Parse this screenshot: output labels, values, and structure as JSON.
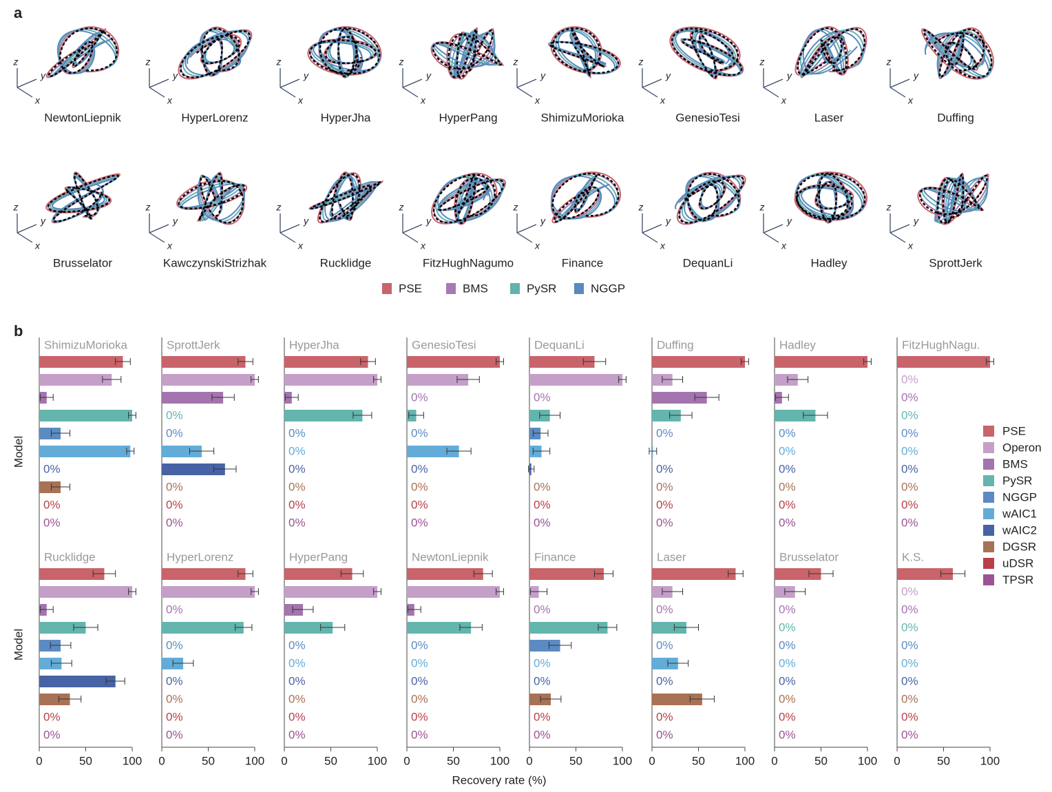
{
  "panel_a": {
    "label": "a",
    "axis_letters": [
      "x",
      "y",
      "z"
    ],
    "systems": [
      "NewtonLiepnik",
      "HyperLorenz",
      "HyperJha",
      "HyperPang",
      "ShimizuMorioka",
      "GenesioTesi",
      "Laser",
      "Duffing",
      "Brusselator",
      "KawczynskiStrizhak",
      "Rucklidge",
      "FitzHughNagumo",
      "Finance",
      "DequanLi",
      "Hadley",
      "SprottJerk"
    ],
    "legend": [
      {
        "name": "PSE",
        "color": "#c8646a"
      },
      {
        "name": "BMS",
        "color": "#a57ab2"
      },
      {
        "name": "PySR",
        "color": "#62b3ad"
      },
      {
        "name": "NGGP",
        "color": "#5a88bf"
      }
    ]
  },
  "figure_b": {
    "label": "b",
    "ylabel": "Model",
    "xlabel": "Recovery rate (%)",
    "xlim": [
      0,
      100
    ],
    "xticks": [
      0,
      50,
      100
    ],
    "models": [
      "PSE",
      "Operon",
      "BMS",
      "PySR",
      "NGGP",
      "wAIC1",
      "wAIC2",
      "DGSR",
      "uDSR",
      "TPSR"
    ],
    "colors": [
      "#c8646a",
      "#c49fc8",
      "#a374ae",
      "#63b5ae",
      "#5b8bc2",
      "#64acd8",
      "#4863a4",
      "#a87254",
      "#b84049",
      "#9a5393"
    ]
  },
  "chart_data": [
    {
      "type": "bar",
      "title": "ShimizuMorioka",
      "values": [
        90,
        78,
        8,
        100,
        23,
        98,
        0,
        23,
        0,
        0
      ],
      "errors": [
        8,
        10,
        7,
        4,
        10,
        4,
        0,
        10,
        0,
        0
      ],
      "value_labels": [
        null,
        null,
        null,
        null,
        null,
        null,
        "0%",
        null,
        "0%",
        "0%"
      ]
    },
    {
      "type": "bar",
      "title": "SprottJerk",
      "values": [
        90,
        100,
        66,
        0,
        0,
        43,
        68,
        0,
        0,
        0
      ],
      "errors": [
        8,
        4,
        12,
        0,
        0,
        13,
        12,
        0,
        0,
        0
      ],
      "value_labels": [
        null,
        null,
        null,
        "0%",
        "0%",
        null,
        null,
        "0%",
        "0%",
        "0%"
      ]
    },
    {
      "type": "bar",
      "title": "HyperJha",
      "values": [
        90,
        100,
        8,
        84,
        0,
        0,
        0,
        0,
        0,
        0
      ],
      "errors": [
        8,
        4,
        7,
        10,
        0,
        0,
        0,
        0,
        0,
        0
      ],
      "value_labels": [
        null,
        null,
        null,
        null,
        "0%",
        "0%",
        "0%",
        "0%",
        "0%",
        "0%"
      ]
    },
    {
      "type": "bar",
      "title": "GenesioTesi",
      "values": [
        100,
        66,
        0,
        10,
        0,
        56,
        0,
        0,
        0,
        0
      ],
      "errors": [
        4,
        12,
        0,
        8,
        0,
        13,
        0,
        0,
        0,
        0
      ],
      "value_labels": [
        null,
        null,
        "0%",
        null,
        "0%",
        null,
        "0%",
        "0%",
        "0%",
        "0%"
      ]
    },
    {
      "type": "bar",
      "title": "DequanLi",
      "values": [
        70,
        100,
        0,
        22,
        12,
        13,
        2,
        0,
        0,
        0
      ],
      "errors": [
        12,
        4,
        0,
        11,
        8,
        9,
        3,
        0,
        0,
        0
      ],
      "value_labels": [
        null,
        null,
        "0%",
        null,
        null,
        null,
        null,
        "0%",
        "0%",
        "0%"
      ]
    },
    {
      "type": "bar",
      "title": "Duffing",
      "values": [
        100,
        22,
        59,
        31,
        0,
        1,
        0,
        0,
        0,
        0
      ],
      "errors": [
        4,
        11,
        13,
        12,
        0,
        4,
        0,
        0,
        0,
        0
      ],
      "value_labels": [
        null,
        null,
        null,
        null,
        "0%",
        null,
        "0%",
        "0%",
        "0%",
        "0%"
      ]
    },
    {
      "type": "bar",
      "title": "Hadley",
      "values": [
        100,
        25,
        8,
        44,
        0,
        0,
        0,
        0,
        0,
        0
      ],
      "errors": [
        4,
        11,
        7,
        13,
        0,
        0,
        0,
        0,
        0,
        0
      ],
      "value_labels": [
        null,
        null,
        null,
        null,
        "0%",
        "0%",
        "0%",
        "0%",
        "0%",
        "0%"
      ]
    },
    {
      "type": "bar",
      "title": "FitzHughNagu.",
      "values": [
        100,
        0,
        0,
        0,
        0,
        0,
        0,
        0,
        0,
        0
      ],
      "errors": [
        4,
        0,
        0,
        0,
        0,
        0,
        0,
        0,
        0,
        0
      ],
      "value_labels": [
        null,
        "0%",
        "0%",
        "0%",
        "0%",
        "0%",
        "0%",
        "0%",
        "0%",
        "0%"
      ]
    },
    {
      "type": "bar",
      "title": "Rucklidge",
      "values": [
        70,
        100,
        8,
        50,
        23,
        24,
        82,
        33,
        0,
        0
      ],
      "errors": [
        12,
        4,
        7,
        13,
        11,
        11,
        10,
        12,
        0,
        0
      ],
      "value_labels": [
        null,
        null,
        null,
        null,
        null,
        null,
        null,
        null,
        "0%",
        "0%"
      ]
    },
    {
      "type": "bar",
      "title": "HyperLorenz",
      "values": [
        90,
        100,
        0,
        88,
        0,
        23,
        0,
        0,
        0,
        0
      ],
      "errors": [
        8,
        4,
        0,
        9,
        0,
        11,
        0,
        0,
        0,
        0
      ],
      "value_labels": [
        null,
        null,
        "0%",
        null,
        "0%",
        null,
        "0%",
        "0%",
        "0%",
        "0%"
      ]
    },
    {
      "type": "bar",
      "title": "HyperPang",
      "values": [
        73,
        100,
        20,
        52,
        0,
        0,
        0,
        0,
        0,
        0
      ],
      "errors": [
        12,
        4,
        11,
        13,
        0,
        0,
        0,
        0,
        0,
        0
      ],
      "value_labels": [
        null,
        null,
        null,
        null,
        "0%",
        "0%",
        "0%",
        "0%",
        "0%",
        "0%"
      ]
    },
    {
      "type": "bar",
      "title": "NewtonLiepnik",
      "values": [
        82,
        100,
        8,
        69,
        0,
        0,
        0,
        0,
        0,
        0
      ],
      "errors": [
        10,
        4,
        7,
        12,
        0,
        0,
        0,
        0,
        0,
        0
      ],
      "value_labels": [
        null,
        null,
        null,
        null,
        "0%",
        "0%",
        "0%",
        "0%",
        "0%",
        "0%"
      ]
    },
    {
      "type": "bar",
      "title": "Finance",
      "values": [
        80,
        10,
        0,
        84,
        33,
        0,
        0,
        23,
        0,
        0
      ],
      "errors": [
        10,
        9,
        0,
        10,
        12,
        0,
        0,
        11,
        0,
        0
      ],
      "value_labels": [
        null,
        null,
        "0%",
        null,
        null,
        "0%",
        "0%",
        null,
        "0%",
        "0%"
      ]
    },
    {
      "type": "bar",
      "title": "Laser",
      "values": [
        90,
        22,
        0,
        37,
        0,
        28,
        0,
        54,
        0,
        0
      ],
      "errors": [
        8,
        11,
        0,
        13,
        0,
        11,
        0,
        13,
        0,
        0
      ],
      "value_labels": [
        null,
        null,
        "0%",
        null,
        "0%",
        null,
        "0%",
        null,
        "0%",
        "0%"
      ]
    },
    {
      "type": "bar",
      "title": "Brusselator",
      "values": [
        50,
        22,
        0,
        0,
        0,
        0,
        0,
        0,
        0,
        0
      ],
      "errors": [
        13,
        11,
        0,
        0,
        0,
        0,
        0,
        0,
        0,
        0
      ],
      "value_labels": [
        null,
        null,
        "0%",
        "0%",
        "0%",
        "0%",
        "0%",
        "0%",
        "0%",
        "0%"
      ]
    },
    {
      "type": "bar",
      "title": "K.S.",
      "values": [
        60,
        0,
        0,
        0,
        0,
        0,
        0,
        0,
        0,
        0
      ],
      "errors": [
        13,
        0,
        0,
        0,
        0,
        0,
        0,
        0,
        0,
        0
      ],
      "value_labels": [
        null,
        "0%",
        "0%",
        "0%",
        "0%",
        "0%",
        "0%",
        "0%",
        "0%",
        "0%"
      ]
    }
  ]
}
